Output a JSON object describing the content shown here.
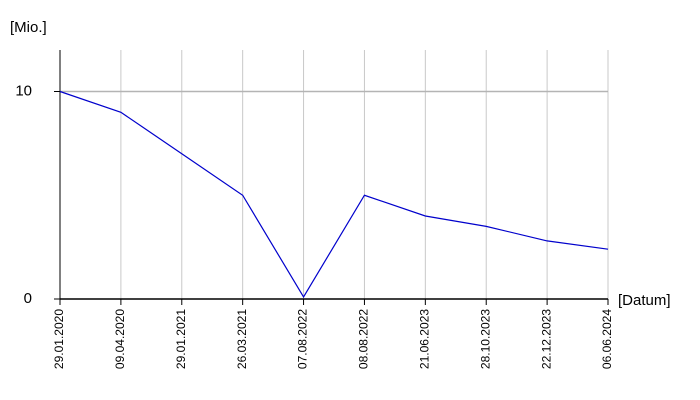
{
  "chart_data": {
    "type": "line",
    "y_label": "[Mio.]",
    "x_label": "[Datum]",
    "categories": [
      "29.01.2020",
      "09.04.2020",
      "29.01.2021",
      "26.03.2021",
      "07.08.2022",
      "08.08.2022",
      "21.06.2023",
      "28.10.2023",
      "22.12.2023",
      "06.06.2024"
    ],
    "series": [
      {
        "color": "#0000cc",
        "values": [
          10,
          9,
          7,
          5,
          0.1,
          5,
          4,
          3.5,
          2.8,
          2.4
        ]
      }
    ],
    "ylim": [
      0,
      12
    ],
    "yticks": [
      0,
      10
    ],
    "grid": true
  }
}
